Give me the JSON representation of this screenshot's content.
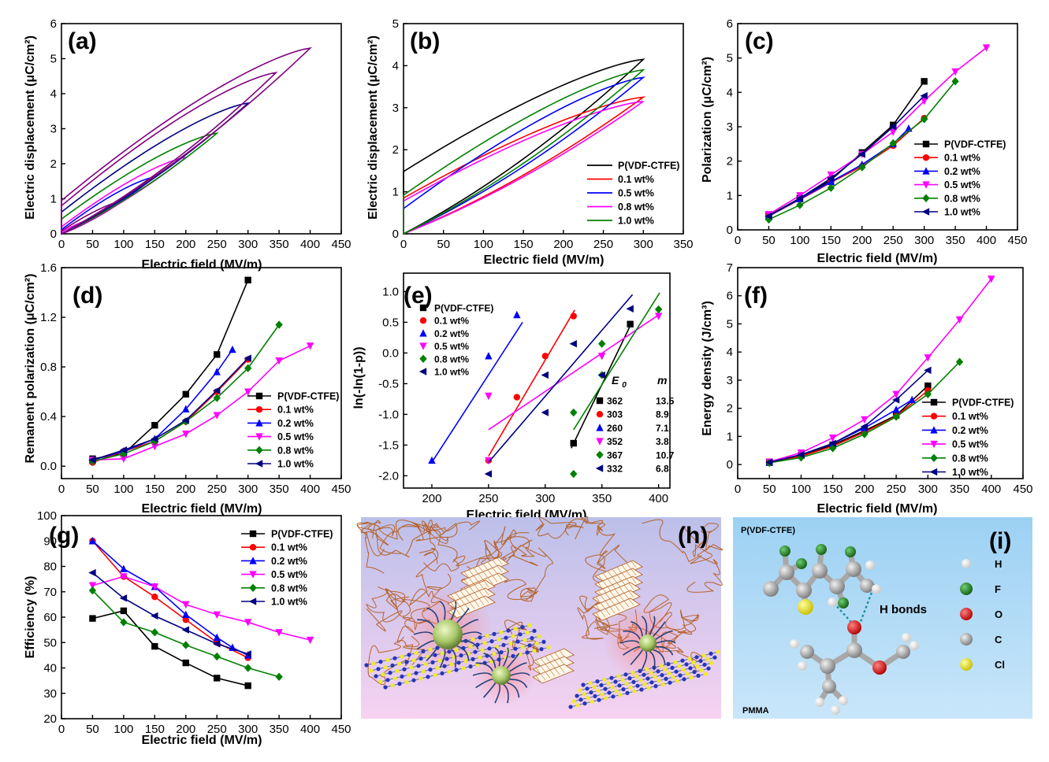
{
  "colors": {
    "black": "#000000",
    "red": "#ff0000",
    "blue": "#0000ff",
    "magenta": "#ff00ff",
    "green": "#008000",
    "navy": "#000080",
    "purple": "#800080",
    "teal": "#2a6a8a"
  },
  "chart_data": [
    {
      "panel": "(a)",
      "type": "line",
      "title": "(a)",
      "xlabel": "Electric field (MV/m)",
      "ylabel": "Electric displacement (μC/cm²)",
      "xlim": [
        0,
        450
      ],
      "ylim": [
        0,
        6
      ],
      "xticks": [
        0,
        50,
        100,
        150,
        200,
        250,
        300,
        350,
        400,
        450
      ],
      "yticks": [
        0,
        1,
        2,
        3,
        4,
        5,
        6
      ],
      "loops": [
        {
          "color": "magenta",
          "emax": 50,
          "dmax": 0.42,
          "d0": 0.05
        },
        {
          "color": "purple",
          "emax": 100,
          "dmax": 0.95,
          "d0": 0.08
        },
        {
          "color": "blue",
          "emax": 150,
          "dmax": 1.62,
          "d0": 0.12
        },
        {
          "color": "magenta",
          "emax": 200,
          "dmax": 2.18,
          "d0": 0.2
        },
        {
          "color": "green",
          "emax": 250,
          "dmax": 2.87,
          "d0": 0.42
        },
        {
          "color": "navy",
          "emax": 300,
          "dmax": 3.73,
          "d0": 0.62
        },
        {
          "color": "purple",
          "emax": 345,
          "dmax": 4.6,
          "d0": 0.8
        },
        {
          "color": "purple",
          "emax": 400,
          "dmax": 5.3,
          "d0": 0.95
        }
      ]
    },
    {
      "panel": "(b)",
      "type": "line",
      "title": "(b)",
      "xlabel": "Electric field (MV/m)",
      "ylabel": "Electric displacement (μC/cm²)",
      "xlim": [
        0,
        350
      ],
      "ylim": [
        0,
        5
      ],
      "xticks": [
        0,
        50,
        100,
        150,
        200,
        250,
        300,
        350
      ],
      "yticks": [
        0,
        1,
        2,
        3,
        4,
        5
      ],
      "legend_position": "lower-right",
      "legend": [
        "P(VDF-CTFE)",
        "0.1 wt%",
        "0.5 wt%",
        "0.8 wt%",
        "1.0 wt%"
      ],
      "loops": [
        {
          "name": "P(VDF-CTFE)",
          "color": "black",
          "emax": 300,
          "dmax": 4.15,
          "d0": 1.48
        },
        {
          "name": "0.1 wt%",
          "color": "red",
          "emax": 300,
          "dmax": 3.25,
          "d0": 0.85
        },
        {
          "name": "0.5 wt%",
          "color": "blue",
          "emax": 300,
          "dmax": 3.72,
          "d0": 0.6
        },
        {
          "name": "0.8 wt%",
          "color": "magenta",
          "emax": 300,
          "dmax": 3.15,
          "d0": 0.78
        },
        {
          "name": "1.0 wt%",
          "color": "green",
          "emax": 300,
          "dmax": 3.9,
          "d0": 0.92
        }
      ]
    },
    {
      "panel": "(c)",
      "type": "line",
      "title": "(c)",
      "xlabel": "Electric field (MV/m)",
      "ylabel": "Polarization (μC/cm²)",
      "xlim": [
        0,
        450
      ],
      "ylim": [
        0,
        6
      ],
      "xticks": [
        0,
        50,
        100,
        150,
        200,
        250,
        300,
        350,
        400,
        450
      ],
      "yticks": [
        0,
        1,
        2,
        3,
        4,
        5,
        6
      ],
      "legend_position": "right",
      "series": [
        {
          "name": "P(VDF-CTFE)",
          "color": "black",
          "marker": "square",
          "x": [
            50,
            100,
            150,
            200,
            250,
            300
          ],
          "y": [
            0.42,
            0.92,
            1.45,
            2.25,
            3.05,
            4.32
          ]
        },
        {
          "name": "0.1 wt%",
          "color": "red",
          "marker": "circle",
          "x": [
            50,
            100,
            150,
            200,
            250,
            300
          ],
          "y": [
            0.4,
            0.88,
            1.38,
            1.85,
            2.45,
            3.25
          ]
        },
        {
          "name": "0.2 wt%",
          "color": "blue",
          "marker": "triangle-up",
          "x": [
            50,
            100,
            150,
            200,
            250,
            275
          ],
          "y": [
            0.4,
            0.9,
            1.4,
            1.9,
            2.5,
            2.95
          ]
        },
        {
          "name": "0.5 wt%",
          "color": "magenta",
          "marker": "triangle-down",
          "x": [
            50,
            100,
            150,
            200,
            250,
            300,
            350,
            400
          ],
          "y": [
            0.45,
            1.0,
            1.6,
            2.2,
            2.85,
            3.75,
            4.6,
            5.3
          ]
        },
        {
          "name": "0.8 wt%",
          "color": "green",
          "marker": "diamond",
          "x": [
            50,
            100,
            150,
            200,
            250,
            300,
            350
          ],
          "y": [
            0.3,
            0.72,
            1.22,
            1.82,
            2.52,
            3.22,
            4.32
          ]
        },
        {
          "name": "1.0 wt%",
          "color": "navy",
          "marker": "triangle-left",
          "x": [
            50,
            100,
            150,
            200,
            250,
            300
          ],
          "y": [
            0.4,
            0.92,
            1.5,
            2.2,
            3.0,
            3.9
          ]
        }
      ]
    },
    {
      "panel": "(d)",
      "type": "line",
      "title": "(d)",
      "xlabel": "Electric field (MV/m)",
      "ylabel": "Remanent polarization (μC/cm²)",
      "xlim": [
        0,
        450
      ],
      "ylim": [
        -0.1,
        1.6
      ],
      "xticks": [
        0,
        50,
        100,
        150,
        200,
        250,
        300,
        350,
        400,
        450
      ],
      "yticks": [
        0.0,
        0.4,
        0.8,
        1.2,
        1.6
      ],
      "ytick_labels": [
        "0.0",
        "0.4",
        "0.8",
        "1.2",
        "1.6"
      ],
      "legend_position": "right",
      "series": [
        {
          "name": "P(VDF-CTFE)",
          "color": "black",
          "marker": "square",
          "x": [
            50,
            100,
            150,
            200,
            250,
            300
          ],
          "y": [
            0.06,
            0.1,
            0.33,
            0.58,
            0.9,
            1.5
          ]
        },
        {
          "name": "0.1 wt%",
          "color": "red",
          "marker": "circle",
          "x": [
            50,
            100,
            150,
            200,
            250,
            300
          ],
          "y": [
            0.03,
            0.12,
            0.2,
            0.36,
            0.6,
            0.86
          ]
        },
        {
          "name": "0.2 wt%",
          "color": "blue",
          "marker": "triangle-up",
          "x": [
            50,
            100,
            150,
            200,
            250,
            275
          ],
          "y": [
            0.05,
            0.12,
            0.22,
            0.46,
            0.76,
            0.94
          ]
        },
        {
          "name": "0.5 wt%",
          "color": "magenta",
          "marker": "triangle-down",
          "x": [
            50,
            100,
            150,
            200,
            250,
            300,
            350,
            400
          ],
          "y": [
            0.05,
            0.06,
            0.16,
            0.26,
            0.41,
            0.6,
            0.85,
            0.97
          ]
        },
        {
          "name": "0.8 wt%",
          "color": "green",
          "marker": "diamond",
          "x": [
            50,
            100,
            150,
            200,
            250,
            300,
            350
          ],
          "y": [
            0.04,
            0.1,
            0.2,
            0.36,
            0.55,
            0.79,
            1.14
          ]
        },
        {
          "name": "1.0 wt%",
          "color": "navy",
          "marker": "triangle-left",
          "x": [
            50,
            100,
            150,
            200,
            250,
            300
          ],
          "y": [
            0.05,
            0.13,
            0.22,
            0.37,
            0.61,
            0.87
          ]
        }
      ]
    },
    {
      "panel": "(e)",
      "type": "scatter",
      "title": "(e)",
      "xlabel": "Electric field (MV/m)",
      "ylabel": "ln(-ln(1-p))",
      "xlim": [
        175,
        410
      ],
      "ylim": [
        -2.2,
        1.3
      ],
      "xticks": [
        200,
        250,
        300,
        350,
        400
      ],
      "yticks": [
        -2.0,
        -1.5,
        -1.0,
        -0.5,
        0.0,
        0.5,
        1.0
      ],
      "ytick_labels": [
        "-2.0",
        "-1.5",
        "-1.0",
        "-0.5",
        "0.0",
        "0.5",
        "1.0"
      ],
      "legend_position": "upper-left",
      "table_header": [
        "E0",
        "m"
      ],
      "series": [
        {
          "name": "P(VDF-CTFE)",
          "color": "black",
          "marker": "square",
          "E0": "362",
          "m": "13.5",
          "x": [
            325,
            375
          ],
          "y": [
            -1.47,
            0.47
          ],
          "fit": [
            [
              323,
              -1.55
            ],
            [
              377,
              0.52
            ]
          ]
        },
        {
          "name": "0.1 wt%",
          "color": "red",
          "marker": "circle",
          "E0": "303",
          "m": "8.9",
          "x": [
            250,
            275,
            300,
            325
          ],
          "y": [
            -1.75,
            -0.72,
            -0.05,
            0.6
          ],
          "fit": [
            [
              250,
              -1.68
            ],
            [
              326,
              0.7
            ]
          ]
        },
        {
          "name": "0.2 wt%",
          "color": "blue",
          "marker": "triangle-up",
          "E0": "260",
          "m": "7.1",
          "x": [
            200,
            250,
            275
          ],
          "y": [
            -1.75,
            -0.05,
            0.62
          ],
          "fit": [
            [
              200,
              -1.78
            ],
            [
              280,
              0.5
            ]
          ]
        },
        {
          "name": "0.5 wt%",
          "color": "magenta",
          "marker": "triangle-down",
          "E0": "352",
          "m": "3.8",
          "x": [
            250,
            250,
            350,
            400
          ],
          "y": [
            -1.75,
            -0.7,
            -0.05,
            0.6
          ],
          "fit": [
            [
              250,
              -1.25
            ],
            [
              400,
              0.62
            ]
          ]
        },
        {
          "name": "0.8 wt%",
          "color": "green",
          "marker": "diamond",
          "E0": "367",
          "m": "10.7",
          "x": [
            325,
            325,
            350,
            350,
            400
          ],
          "y": [
            -1.97,
            -0.97,
            -0.36,
            0.15,
            0.71
          ],
          "fit": [
            [
              325,
              -1.25
            ],
            [
              401,
              0.98
            ]
          ]
        },
        {
          "name": "1.0 wt%",
          "color": "navy",
          "marker": "triangle-left",
          "E0": "332",
          "m": "6.8",
          "x": [
            250,
            300,
            300,
            325,
            350,
            375
          ],
          "y": [
            -1.97,
            -0.97,
            -0.36,
            0.15,
            -0.36,
            0.72
          ],
          "fit": [
            [
              250,
              -1.78
            ],
            [
              377,
              0.95
            ]
          ]
        }
      ]
    },
    {
      "panel": "(f)",
      "type": "line",
      "title": "(f)",
      "xlabel": "Electric field (MV/m)",
      "ylabel": "Energy density (J/cm³)",
      "xlim": [
        0,
        450
      ],
      "ylim": [
        -0.5,
        7
      ],
      "xticks": [
        0,
        50,
        100,
        150,
        200,
        250,
        300,
        350,
        400,
        450
      ],
      "yticks": [
        0,
        1,
        2,
        3,
        4,
        5,
        6,
        7
      ],
      "legend_position": "right",
      "series": [
        {
          "name": "P(VDF-CTFE)",
          "color": "black",
          "marker": "square",
          "x": [
            50,
            100,
            150,
            200,
            250,
            300
          ],
          "y": [
            0.07,
            0.32,
            0.7,
            1.2,
            1.75,
            2.8
          ]
        },
        {
          "name": "0.1 wt%",
          "color": "red",
          "marker": "circle",
          "x": [
            50,
            100,
            150,
            200,
            250,
            300
          ],
          "y": [
            0.07,
            0.3,
            0.65,
            1.15,
            1.72,
            2.63
          ]
        },
        {
          "name": "0.2 wt%",
          "color": "blue",
          "marker": "triangle-up",
          "x": [
            50,
            100,
            150,
            200,
            250,
            275
          ],
          "y": [
            0.08,
            0.35,
            0.75,
            1.3,
            1.95,
            2.3
          ]
        },
        {
          "name": "0.5 wt%",
          "color": "magenta",
          "marker": "triangle-down",
          "x": [
            50,
            100,
            150,
            200,
            250,
            300,
            350,
            400
          ],
          "y": [
            0.1,
            0.42,
            0.95,
            1.6,
            2.5,
            3.8,
            5.15,
            6.6
          ]
        },
        {
          "name": "0.8 wt%",
          "color": "green",
          "marker": "diamond",
          "x": [
            50,
            100,
            150,
            200,
            250,
            300,
            350
          ],
          "y": [
            0.06,
            0.25,
            0.58,
            1.08,
            1.7,
            2.5,
            3.65
          ]
        },
        {
          "name": "1.0 wt%",
          "color": "navy",
          "marker": "triangle-left",
          "x": [
            50,
            100,
            150,
            200,
            250,
            300
          ],
          "y": [
            0.08,
            0.35,
            0.75,
            1.35,
            2.3,
            3.35
          ]
        }
      ]
    },
    {
      "panel": "(g)",
      "type": "line",
      "title": "(g)",
      "xlabel": "Electric field (MV/m)",
      "ylabel": "Efficiency (%)",
      "xlim": [
        0,
        450
      ],
      "ylim": [
        20,
        100
      ],
      "xticks": [
        0,
        50,
        100,
        150,
        200,
        250,
        300,
        350,
        400,
        450
      ],
      "yticks": [
        20,
        30,
        40,
        50,
        60,
        70,
        80,
        90,
        100
      ],
      "legend_position": "upper-right",
      "series": [
        {
          "name": "P(VDF-CTFE)",
          "color": "black",
          "marker": "square",
          "x": [
            50,
            100,
            150,
            200,
            250,
            300
          ],
          "y": [
            59.5,
            62.5,
            48.5,
            42,
            36,
            33
          ]
        },
        {
          "name": "0.1 wt%",
          "color": "red",
          "marker": "circle",
          "x": [
            50,
            100,
            150,
            200,
            250,
            300
          ],
          "y": [
            90,
            76,
            68,
            59,
            50,
            44
          ]
        },
        {
          "name": "0.2 wt%",
          "color": "blue",
          "marker": "triangle-up",
          "x": [
            50,
            100,
            150,
            200,
            250,
            275,
            300
          ],
          "y": [
            90,
            79,
            72,
            61,
            52,
            48,
            45
          ]
        },
        {
          "name": "0.5 wt%",
          "color": "magenta",
          "marker": "triangle-down",
          "x": [
            50,
            100,
            150,
            200,
            250,
            300,
            350,
            400
          ],
          "y": [
            72.5,
            76,
            72,
            65,
            61,
            58,
            54,
            51
          ]
        },
        {
          "name": "0.8 wt%",
          "color": "green",
          "marker": "diamond",
          "x": [
            50,
            100,
            150,
            200,
            250,
            300,
            350
          ],
          "y": [
            70.5,
            58,
            54,
            49,
            44.5,
            40,
            36.5
          ]
        },
        {
          "name": "1.0 wt%",
          "color": "navy",
          "marker": "triangle-left",
          "x": [
            50,
            100,
            150,
            200,
            250,
            300
          ],
          "y": [
            77.5,
            67.5,
            60.5,
            55,
            49.5,
            45.5
          ]
        }
      ]
    }
  ],
  "panel_h": {
    "label": "(h)"
  },
  "panel_i": {
    "label": "(i)",
    "top_label": "P(VDF-CTFE)",
    "bottom_label": "PMMA",
    "bond_label": "H bonds",
    "legend": [
      {
        "label": "H",
        "color": "#ffffff"
      },
      {
        "label": "F",
        "color": "#1e7d1e"
      },
      {
        "label": "O",
        "color": "#e01818"
      },
      {
        "label": "C",
        "color": "#9a9a9a"
      },
      {
        "label": "Cl",
        "color": "#f5f01a"
      }
    ]
  }
}
